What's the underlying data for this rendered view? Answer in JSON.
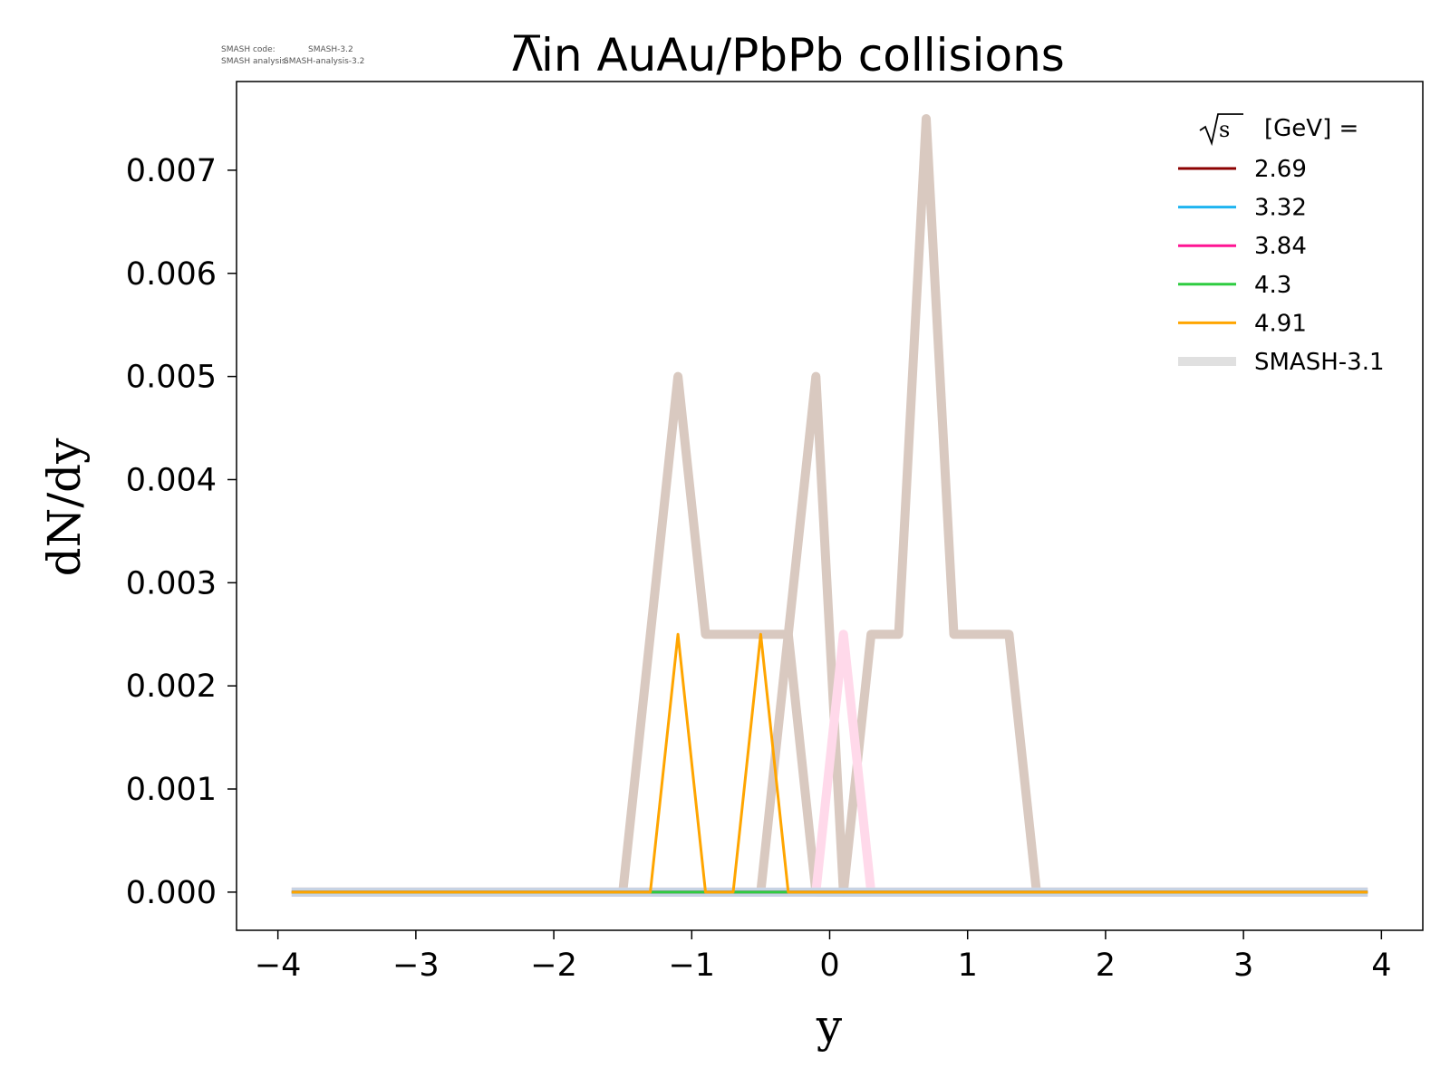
{
  "meta": {
    "code_label": "SMASH code:",
    "code_value": "SMASH-3.2",
    "analysis_label": "SMASH analysis:",
    "analysis_value": "SMASH-analysis-3.2"
  },
  "chart_data": {
    "type": "line",
    "title": "Λ̄ in AuAu/PbPb collisions",
    "title_prefix": "Λ",
    "title_rest": " in AuAu/PbPb collisions",
    "xlabel": "y",
    "ylabel": "dN/dy",
    "xlim": [
      -4.3,
      4.3
    ],
    "ylim": [
      -0.00037,
      0.00786
    ],
    "xticks": [
      -4,
      -3,
      -2,
      -1,
      0,
      1,
      2,
      3,
      4
    ],
    "xtick_labels": [
      "−4",
      "−3",
      "−2",
      "−1",
      "0",
      "1",
      "2",
      "3",
      "4"
    ],
    "yticks": [
      0.0,
      0.001,
      0.002,
      0.003,
      0.004,
      0.005,
      0.006,
      0.007
    ],
    "ytick_labels": [
      "0.000",
      "0.001",
      "0.002",
      "0.003",
      "0.004",
      "0.005",
      "0.006",
      "0.007"
    ],
    "grid": false,
    "legend": {
      "placement": "top-right",
      "title_sqrt": "√s",
      "title_rest": "[GeV] ="
    },
    "series": [
      {
        "name": "SMASH-3.1",
        "color": "#d9c9c0",
        "width": "thick",
        "legend_color": "#e0e0e0",
        "x": [
          -3.9,
          -1.5,
          -1.1,
          -0.9,
          -0.7,
          -0.5,
          -0.3,
          -0.1,
          0.1,
          0.3,
          0.5,
          0.7,
          0.9,
          1.1,
          1.3,
          1.5,
          3.9
        ],
        "y": [
          0,
          0,
          0.005,
          0.0025,
          0.0025,
          0.0025,
          0.0025,
          0.005,
          0,
          0.0025,
          0.0025,
          0.0075,
          0.0025,
          0.0025,
          0.0025,
          0,
          0
        ]
      },
      {
        "name": "SMASH-3.1",
        "color": "#d9c9c0",
        "width": "thick",
        "x": [
          -3.9,
          -0.5,
          -0.3,
          -0.1,
          3.9
        ],
        "y": [
          0,
          0,
          0.0025,
          0,
          0
        ]
      },
      {
        "name": "SMASH-3.1",
        "color": "#ffd9ea",
        "width": "thick",
        "x": [
          -3.9,
          -0.1,
          0.1,
          0.3,
          3.9
        ],
        "y": [
          0,
          0,
          0.0025,
          0,
          0
        ]
      },
      {
        "name": "SMASH-3.1",
        "color": "#c7d3e4",
        "width": "thick",
        "x": [
          -3.9,
          3.9
        ],
        "y": [
          0,
          0
        ]
      },
      {
        "name": "2.69",
        "color": "#8b0000",
        "width": "thin",
        "x": [
          -3.9,
          3.9
        ],
        "y": [
          0,
          0
        ]
      },
      {
        "name": "3.32",
        "color": "#1fb4f0",
        "width": "thin",
        "x": [
          -3.9,
          3.9
        ],
        "y": [
          0,
          0
        ]
      },
      {
        "name": "3.84",
        "color": "#ff1493",
        "width": "thin",
        "x": [
          -3.9,
          3.9
        ],
        "y": [
          0,
          0
        ]
      },
      {
        "name": "4.3",
        "color": "#2ecc40",
        "width": "thin",
        "x": [
          -3.9,
          -1.3,
          -0.5,
          -0.3,
          3.9
        ],
        "y": [
          0,
          0,
          0,
          0,
          0
        ]
      },
      {
        "name": "4.91",
        "color": "#ffa500",
        "width": "thin",
        "x": [
          -3.9,
          -1.3,
          -1.1,
          -0.9,
          -0.7,
          -0.5,
          -0.3,
          3.9
        ],
        "y": [
          0,
          0,
          0.0025,
          0,
          0,
          0.0025,
          0,
          0
        ]
      }
    ],
    "legend_entries": [
      {
        "name": "2.69",
        "color": "#8b0000",
        "width": "thin"
      },
      {
        "name": "3.32",
        "color": "#1fb4f0",
        "width": "thin"
      },
      {
        "name": "3.84",
        "color": "#ff1493",
        "width": "thin"
      },
      {
        "name": "4.3",
        "color": "#2ecc40",
        "width": "thin"
      },
      {
        "name": "4.91",
        "color": "#ffa500",
        "width": "thin"
      },
      {
        "name": "SMASH-3.1",
        "color": "#e0e0e0",
        "width": "thick"
      }
    ]
  }
}
